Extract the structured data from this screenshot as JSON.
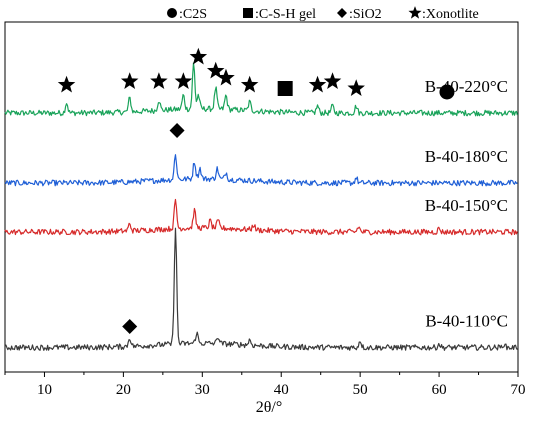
{
  "chart_data": {
    "type": "line",
    "title": "",
    "xlabel": "2θ/°",
    "ylabel": "",
    "xlim": [
      5,
      70
    ],
    "ylim": [
      0,
      100
    ],
    "x_ticks": [
      10,
      20,
      30,
      40,
      50,
      60,
      70
    ],
    "grid": false,
    "legend": {
      "position": "top",
      "items": [
        {
          "marker": "circle",
          "label": ":C2S"
        },
        {
          "marker": "square",
          "label": ":C-S-H gel"
        },
        {
          "marker": "diamond",
          "label": ":SiO2"
        },
        {
          "marker": "star",
          "label": ":Xonotlite"
        }
      ]
    },
    "series": [
      {
        "name": "B-40-220°C",
        "color": "#1aa35a",
        "baseline": 74,
        "peaks": [
          {
            "x": 12.8,
            "h": 3
          },
          {
            "x": 20.8,
            "h": 4
          },
          {
            "x": 24.5,
            "h": 3
          },
          {
            "x": 27.6,
            "h": 4
          },
          {
            "x": 28.9,
            "h": 13
          },
          {
            "x": 29.5,
            "h": 4
          },
          {
            "x": 31.7,
            "h": 6
          },
          {
            "x": 33.0,
            "h": 4
          },
          {
            "x": 36.0,
            "h": 2.5
          },
          {
            "x": 44.6,
            "h": 2
          },
          {
            "x": 46.5,
            "h": 2
          },
          {
            "x": 49.5,
            "h": 2
          }
        ],
        "markers": [
          {
            "type": "star",
            "x": 12.8,
            "y": 82
          },
          {
            "type": "star",
            "x": 20.8,
            "y": 83
          },
          {
            "type": "star",
            "x": 24.5,
            "y": 83
          },
          {
            "type": "star",
            "x": 27.6,
            "y": 83
          },
          {
            "type": "star",
            "x": 29.5,
            "y": 90
          },
          {
            "type": "star",
            "x": 31.7,
            "y": 86
          },
          {
            "type": "star",
            "x": 33.0,
            "y": 84
          },
          {
            "type": "star",
            "x": 36.0,
            "y": 82
          },
          {
            "type": "square",
            "x": 40.5,
            "y": 81
          },
          {
            "type": "star",
            "x": 44.6,
            "y": 82
          },
          {
            "type": "star",
            "x": 46.5,
            "y": 83
          },
          {
            "type": "star",
            "x": 49.5,
            "y": 81
          },
          {
            "type": "circle",
            "x": 61.0,
            "y": 80
          }
        ]
      },
      {
        "name": "B-40-180°C",
        "color": "#1f5fd6",
        "baseline": 54,
        "peaks": [
          {
            "x": 26.6,
            "h": 7
          },
          {
            "x": 29.0,
            "h": 5
          },
          {
            "x": 29.7,
            "h": 3
          },
          {
            "x": 31.9,
            "h": 3
          },
          {
            "x": 33.0,
            "h": 2
          },
          {
            "x": 49.5,
            "h": 1.5
          }
        ],
        "markers": [
          {
            "type": "diamond",
            "x": 26.8,
            "y": 69
          }
        ]
      },
      {
        "name": "B-40-150°C",
        "color": "#d62a2a",
        "baseline": 40,
        "peaks": [
          {
            "x": 20.8,
            "h": 2
          },
          {
            "x": 26.6,
            "h": 8
          },
          {
            "x": 29.0,
            "h": 5
          },
          {
            "x": 31.0,
            "h": 2
          },
          {
            "x": 32.0,
            "h": 2
          },
          {
            "x": 36.5,
            "h": 1.5
          },
          {
            "x": 49.8,
            "h": 1.5
          },
          {
            "x": 60.0,
            "h": 1
          }
        ],
        "markers": []
      },
      {
        "name": "B-40-110°C",
        "color": "#3a3a3a",
        "baseline": 7,
        "peaks": [
          {
            "x": 20.8,
            "h": 2.5
          },
          {
            "x": 26.6,
            "h": 33
          },
          {
            "x": 29.3,
            "h": 3
          },
          {
            "x": 32.0,
            "h": 2
          },
          {
            "x": 36.0,
            "h": 1.5
          },
          {
            "x": 50.0,
            "h": 2
          },
          {
            "x": 60.0,
            "h": 1
          },
          {
            "x": 68.2,
            "h": 1
          }
        ],
        "markers": [
          {
            "type": "diamond",
            "x": 20.8,
            "y": 13
          }
        ]
      }
    ]
  }
}
